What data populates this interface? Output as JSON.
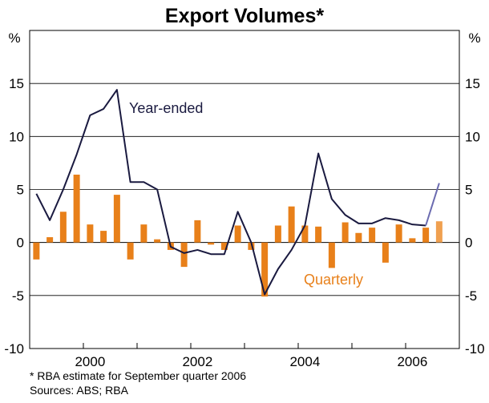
{
  "chart_data": {
    "type": "bar+line",
    "title": "Export Volumes*",
    "y_unit_left": "%",
    "y_unit_right": "%",
    "ylim": [
      -10,
      20
    ],
    "yticks": [
      -10,
      -5,
      0,
      5,
      10,
      15
    ],
    "x_tick_labels": [
      "2000",
      "2002",
      "2004",
      "2006"
    ],
    "x_tick_label_index": [
      4.5,
      12.5,
      20.5,
      28.5
    ],
    "x_year_boundaries": [
      0,
      4,
      8,
      12,
      16,
      20,
      24,
      28,
      32
    ],
    "n_periods": 32,
    "series": [
      {
        "name": "Quarterly",
        "kind": "bar",
        "color": "#e8801a",
        "estimate_color": "#f0a050",
        "values": [
          -1.6,
          0.5,
          2.9,
          6.4,
          1.7,
          1.1,
          4.5,
          -1.6,
          1.7,
          0.3,
          -0.7,
          -2.3,
          2.1,
          -0.2,
          -0.7,
          1.6,
          -0.7,
          -5.1,
          1.6,
          3.4,
          1.6,
          1.5,
          -2.4,
          1.9,
          0.9,
          1.4,
          -1.9,
          1.7,
          0.4,
          1.4,
          2.0
        ],
        "start_index": 0,
        "estimate_last": true
      },
      {
        "name": "Year-ended",
        "kind": "line",
        "color": "#1a1a40",
        "estimate_color": "#6b6bb0",
        "values": [
          4.6,
          2.1,
          5.0,
          8.3,
          12.0,
          12.6,
          14.4,
          5.7,
          5.7,
          5.0,
          -0.4,
          -1.0,
          -0.7,
          -1.1,
          -1.1,
          2.9,
          0.0,
          -4.9,
          -2.5,
          -0.7,
          1.6,
          8.4,
          4.1,
          2.6,
          1.8,
          1.8,
          2.3,
          2.1,
          1.7,
          1.6,
          5.6
        ],
        "start_index": 0,
        "estimate_last": true
      }
    ],
    "annotations": {
      "year_ended": "Year-ended",
      "quarterly": "Quarterly"
    }
  },
  "footnotes": {
    "note": "*   RBA estimate for September quarter 2006",
    "sources": "Sources: ABS; RBA"
  }
}
